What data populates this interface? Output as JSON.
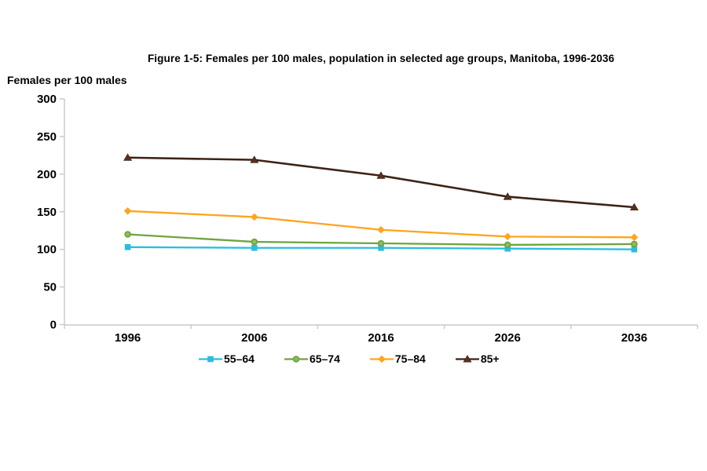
{
  "title": "Figure 1-5: Females per 100 males, population in selected age groups, Manitoba, 1996-2036",
  "y_axis_label": "Females per 100 males",
  "chart_data": {
    "type": "line",
    "title": "Figure 1-5: Females per 100 males, population in selected age groups, Manitoba, 1996-2036",
    "xlabel": "",
    "ylabel": "Females per 100 males",
    "categories": [
      "1996",
      "2006",
      "2016",
      "2026",
      "2036"
    ],
    "series": [
      {
        "name": "55–64",
        "marker": "square",
        "color": "#2bbde0",
        "marker_fill": "#2bbde0",
        "values": [
          103,
          102,
          102,
          101,
          100
        ]
      },
      {
        "name": "65–74",
        "marker": "circle",
        "color": "#6fa43e",
        "marker_fill": "#8cbd5e",
        "values": [
          120,
          110,
          108,
          106,
          107
        ]
      },
      {
        "name": "75–84",
        "marker": "diamond",
        "color": "#ffa41e",
        "marker_fill": "#ffa41e",
        "values": [
          151,
          143,
          126,
          117,
          116
        ]
      },
      {
        "name": "85+",
        "marker": "triangle",
        "color": "#3c2315",
        "marker_fill": "#5e2f1c",
        "values": [
          222,
          219,
          198,
          170,
          156
        ]
      }
    ],
    "ylim": [
      0,
      300
    ],
    "yticks": [
      0,
      50,
      100,
      150,
      200,
      250,
      300
    ],
    "grid": false,
    "legend_position": "bottom",
    "axis_color": "#c8c8c8",
    "text_color": "#000000"
  }
}
